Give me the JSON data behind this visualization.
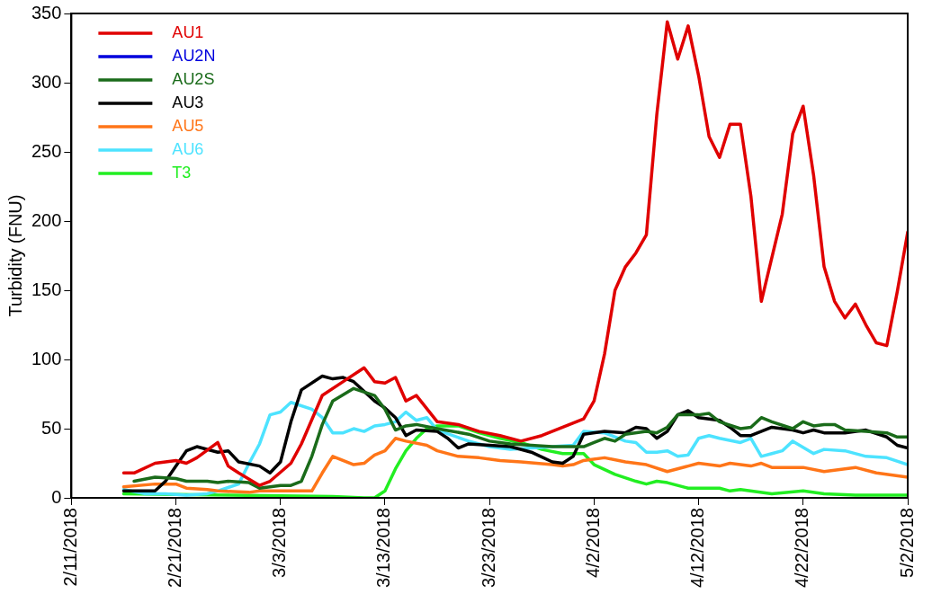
{
  "chart_data": {
    "type": "line",
    "ylabel": "Turbidity (FNU)",
    "legend": "top left",
    "xlim": [
      "2018-02-11",
      "2018-05-02"
    ],
    "xticks": [
      {
        "value": "2018-02-11",
        "label": "2/11/2018"
      },
      {
        "value": "2018-02-21",
        "label": "2/21/2018"
      },
      {
        "value": "2018-03-03",
        "label": "3/3/2018"
      },
      {
        "value": "2018-03-13",
        "label": "3/13/2018"
      },
      {
        "value": "2018-03-23",
        "label": "3/23/2018"
      },
      {
        "value": "2018-04-02",
        "label": "4/2/2018"
      },
      {
        "value": "2018-04-12",
        "label": "4/12/2018"
      },
      {
        "value": "2018-04-22",
        "label": "4/22/2018"
      },
      {
        "value": "2018-05-02",
        "label": "5/2/2018"
      }
    ],
    "ylim": [
      0,
      350
    ],
    "yticks": [
      0,
      50,
      100,
      150,
      200,
      250,
      300,
      350
    ],
    "series": [
      {
        "name": "AU1",
        "color": "#e00000",
        "x": [
          "2018-02-16",
          "2018-02-17",
          "2018-02-19",
          "2018-02-21",
          "2018-02-22",
          "2018-02-23",
          "2018-02-25",
          "2018-02-26",
          "2018-02-27",
          "2018-03-01",
          "2018-03-02",
          "2018-03-04",
          "2018-03-05",
          "2018-03-07",
          "2018-03-09",
          "2018-03-11",
          "2018-03-12",
          "2018-03-13",
          "2018-03-14",
          "2018-03-15",
          "2018-03-16",
          "2018-03-18",
          "2018-03-20",
          "2018-03-22",
          "2018-03-24",
          "2018-03-26",
          "2018-03-28",
          "2018-03-30",
          "2018-04-01",
          "2018-04-02",
          "2018-04-03",
          "2018-04-04",
          "2018-04-05",
          "2018-04-06",
          "2018-04-07",
          "2018-04-08",
          "2018-04-09",
          "2018-04-10",
          "2018-04-11",
          "2018-04-12",
          "2018-04-13",
          "2018-04-14",
          "2018-04-15",
          "2018-04-16",
          "2018-04-17",
          "2018-04-18",
          "2018-04-20",
          "2018-04-21",
          "2018-04-22",
          "2018-04-23",
          "2018-04-24",
          "2018-04-25",
          "2018-04-26",
          "2018-04-27",
          "2018-04-28",
          "2018-04-29",
          "2018-04-30",
          "2018-05-01",
          "2018-05-02"
        ],
        "values": [
          18,
          18,
          25,
          27,
          25,
          29,
          40,
          23,
          18,
          9,
          12,
          25,
          39,
          74,
          84,
          94,
          84,
          83,
          87,
          70,
          74,
          55,
          53,
          48,
          45,
          41,
          45,
          51,
          57,
          70,
          104,
          150,
          167,
          177,
          190,
          277,
          344,
          317,
          341,
          305,
          261,
          246,
          270,
          270,
          218,
          142,
          205,
          263,
          283,
          233,
          167,
          142,
          130,
          140,
          125,
          112,
          110,
          149,
          192
        ]
      },
      {
        "name": "AU2N",
        "color": "#0000dd"
      },
      {
        "name": "AU2S",
        "color": "#1a6b1a",
        "x": [
          "2018-02-17",
          "2018-02-19",
          "2018-02-21",
          "2018-02-22",
          "2018-02-24",
          "2018-02-25",
          "2018-02-26",
          "2018-02-28",
          "2018-03-01",
          "2018-03-03",
          "2018-03-04",
          "2018-03-05",
          "2018-03-06",
          "2018-03-07",
          "2018-03-08",
          "2018-03-10",
          "2018-03-12",
          "2018-03-13",
          "2018-03-14",
          "2018-03-15",
          "2018-03-16",
          "2018-03-18",
          "2018-03-21",
          "2018-03-23",
          "2018-03-25",
          "2018-03-27",
          "2018-03-29",
          "2018-04-01",
          "2018-04-02",
          "2018-04-03",
          "2018-04-04",
          "2018-04-05",
          "2018-04-07",
          "2018-04-08",
          "2018-04-09",
          "2018-04-10",
          "2018-04-12",
          "2018-04-13",
          "2018-04-14",
          "2018-04-16",
          "2018-04-17",
          "2018-04-18",
          "2018-04-19",
          "2018-04-21",
          "2018-04-22",
          "2018-04-23",
          "2018-04-24",
          "2018-04-25",
          "2018-04-26",
          "2018-04-28",
          "2018-04-30",
          "2018-05-01",
          "2018-05-02"
        ],
        "values": [
          12,
          15,
          14,
          12,
          12,
          11,
          12,
          11,
          7,
          9,
          9,
          12,
          30,
          53,
          70,
          79,
          74,
          64,
          49,
          52,
          53,
          50,
          46,
          41,
          39,
          38,
          37,
          37,
          40,
          43,
          41,
          46,
          48,
          47,
          51,
          60,
          60,
          61,
          55,
          50,
          51,
          58,
          55,
          50,
          55,
          52,
          53,
          53,
          49,
          48,
          47,
          44,
          44
        ]
      },
      {
        "name": "AU3",
        "color": "#000000",
        "x": [
          "2018-02-16",
          "2018-02-19",
          "2018-02-20",
          "2018-02-22",
          "2018-02-23",
          "2018-02-25",
          "2018-02-26",
          "2018-02-27",
          "2018-03-01",
          "2018-03-02",
          "2018-03-03",
          "2018-03-04",
          "2018-03-05",
          "2018-03-07",
          "2018-03-08",
          "2018-03-09",
          "2018-03-10",
          "2018-03-12",
          "2018-03-13",
          "2018-03-14",
          "2018-03-15",
          "2018-03-16",
          "2018-03-18",
          "2018-03-19",
          "2018-03-20",
          "2018-03-21",
          "2018-03-23",
          "2018-03-25",
          "2018-03-27",
          "2018-03-29",
          "2018-03-30",
          "2018-03-31",
          "2018-04-01",
          "2018-04-03",
          "2018-04-05",
          "2018-04-06",
          "2018-04-07",
          "2018-04-08",
          "2018-04-09",
          "2018-04-10",
          "2018-04-11",
          "2018-04-12",
          "2018-04-14",
          "2018-04-15",
          "2018-04-16",
          "2018-04-17",
          "2018-04-19",
          "2018-04-21",
          "2018-04-22",
          "2018-04-23",
          "2018-04-24",
          "2018-04-26",
          "2018-04-28",
          "2018-04-30",
          "2018-05-01",
          "2018-05-02"
        ],
        "values": [
          5,
          5,
          12,
          34,
          37,
          33,
          34,
          26,
          23,
          18,
          26,
          55,
          78,
          88,
          86,
          87,
          84,
          70,
          65,
          58,
          45,
          49,
          48,
          43,
          36,
          39,
          38,
          37,
          33,
          26,
          25,
          30,
          46,
          48,
          47,
          51,
          50,
          43,
          48,
          60,
          63,
          58,
          56,
          51,
          45,
          45,
          51,
          49,
          47,
          49,
          47,
          47,
          49,
          44,
          38,
          36
        ]
      },
      {
        "name": "AU5",
        "color": "#ff7518",
        "x": [
          "2018-02-16",
          "2018-02-19",
          "2018-02-21",
          "2018-02-22",
          "2018-02-24",
          "2018-02-25",
          "2018-02-28",
          "2018-03-01",
          "2018-03-04",
          "2018-03-06",
          "2018-03-07",
          "2018-03-08",
          "2018-03-10",
          "2018-03-11",
          "2018-03-12",
          "2018-03-13",
          "2018-03-14",
          "2018-03-15",
          "2018-03-17",
          "2018-03-18",
          "2018-03-20",
          "2018-03-22",
          "2018-03-24",
          "2018-03-26",
          "2018-03-29",
          "2018-03-30",
          "2018-03-31",
          "2018-04-01",
          "2018-04-03",
          "2018-04-05",
          "2018-04-07",
          "2018-04-09",
          "2018-04-11",
          "2018-04-12",
          "2018-04-14",
          "2018-04-15",
          "2018-04-17",
          "2018-04-18",
          "2018-04-19",
          "2018-04-22",
          "2018-04-24",
          "2018-04-27",
          "2018-04-29",
          "2018-05-02"
        ],
        "values": [
          8,
          10,
          10,
          7,
          6,
          5,
          4,
          5,
          5,
          5,
          18,
          30,
          24,
          25,
          31,
          34,
          43,
          41,
          38,
          34,
          30,
          29,
          27,
          26,
          24,
          23,
          24,
          27,
          29,
          26,
          24,
          19,
          23,
          25,
          23,
          25,
          23,
          25,
          22,
          22,
          19,
          22,
          18,
          15
        ]
      },
      {
        "name": "AU6",
        "color": "#4de3ff",
        "x": [
          "2018-02-16",
          "2018-02-18",
          "2018-02-20",
          "2018-02-22",
          "2018-02-24",
          "2018-02-25",
          "2018-02-27",
          "2018-02-28",
          "2018-03-01",
          "2018-03-02",
          "2018-03-03",
          "2018-03-04",
          "2018-03-06",
          "2018-03-07",
          "2018-03-08",
          "2018-03-09",
          "2018-03-10",
          "2018-03-11",
          "2018-03-12",
          "2018-03-13",
          "2018-03-14",
          "2018-03-15",
          "2018-03-16",
          "2018-03-17",
          "2018-03-18",
          "2018-03-21",
          "2018-03-23",
          "2018-03-25",
          "2018-03-27",
          "2018-03-29",
          "2018-03-31",
          "2018-04-01",
          "2018-04-03",
          "2018-04-05",
          "2018-04-06",
          "2018-04-07",
          "2018-04-08",
          "2018-04-09",
          "2018-04-10",
          "2018-04-11",
          "2018-04-12",
          "2018-04-13",
          "2018-04-14",
          "2018-04-16",
          "2018-04-17",
          "2018-04-18",
          "2018-04-19",
          "2018-04-20",
          "2018-04-21",
          "2018-04-23",
          "2018-04-24",
          "2018-04-26",
          "2018-04-28",
          "2018-04-30",
          "2018-05-02"
        ],
        "values": [
          6,
          3,
          3,
          2,
          3,
          5,
          10,
          25,
          39,
          60,
          62,
          69,
          64,
          58,
          47,
          47,
          50,
          48,
          52,
          53,
          55,
          62,
          56,
          58,
          49,
          41,
          37,
          35,
          36,
          37,
          38,
          48,
          47,
          41,
          40,
          33,
          33,
          34,
          30,
          31,
          43,
          45,
          43,
          40,
          43,
          30,
          32,
          34,
          41,
          32,
          35,
          34,
          30,
          29,
          24
        ]
      },
      {
        "name": "T3",
        "color": "#22ee22",
        "x": [
          "2018-02-16",
          "2018-02-26",
          "2018-03-08",
          "2018-03-11",
          "2018-03-12",
          "2018-03-13",
          "2018-03-14",
          "2018-03-15",
          "2018-03-16",
          "2018-03-17",
          "2018-03-18",
          "2018-03-20",
          "2018-03-22",
          "2018-03-24",
          "2018-03-26",
          "2018-03-28",
          "2018-03-30",
          "2018-04-01",
          "2018-04-02",
          "2018-04-04",
          "2018-04-06",
          "2018-04-07",
          "2018-04-08",
          "2018-04-09",
          "2018-04-11",
          "2018-04-14",
          "2018-04-15",
          "2018-04-16",
          "2018-04-19",
          "2018-04-22",
          "2018-04-24",
          "2018-04-27",
          "2018-05-02"
        ],
        "values": [
          3,
          2,
          1,
          0,
          0,
          5,
          21,
          34,
          43,
          50,
          52,
          52,
          47,
          43,
          40,
          35,
          32,
          32,
          24,
          17,
          12,
          10,
          12,
          11,
          7,
          7,
          5,
          6,
          3,
          5,
          3,
          2,
          2
        ]
      }
    ]
  }
}
